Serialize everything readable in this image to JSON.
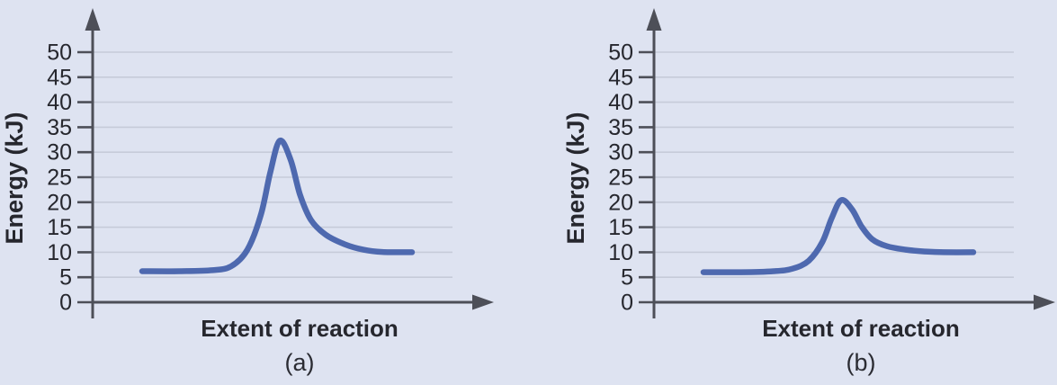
{
  "colors": {
    "background": "#dee3f1",
    "curve": "#4e69af",
    "gridline": "#c6cbd9",
    "axis": "#4d4f58",
    "text": "#26272e"
  },
  "chart_data": [
    {
      "type": "line",
      "caption": "(a)",
      "xlabel": "Extent of reaction",
      "ylabel": "Energy (kJ)",
      "ylim": [
        0,
        50
      ],
      "yticks": [
        0,
        5,
        10,
        15,
        20,
        25,
        30,
        35,
        40,
        45,
        50
      ],
      "grid": "horizontal",
      "legend": "none",
      "reactant_energy_kJ": 6,
      "peak_energy_kJ": 32,
      "product_energy_kJ": 10,
      "curve_points": [
        [
          0.0,
          6.2
        ],
        [
          0.14,
          6.2
        ],
        [
          0.26,
          6.4
        ],
        [
          0.33,
          7.2
        ],
        [
          0.39,
          10.5
        ],
        [
          0.44,
          17.5
        ],
        [
          0.475,
          26.0
        ],
        [
          0.51,
          32.3
        ],
        [
          0.55,
          28.5
        ],
        [
          0.585,
          21.5
        ],
        [
          0.625,
          16.5
        ],
        [
          0.68,
          13.5
        ],
        [
          0.75,
          11.6
        ],
        [
          0.82,
          10.5
        ],
        [
          0.89,
          10.05
        ],
        [
          1.0,
          10.0
        ]
      ]
    },
    {
      "type": "line",
      "caption": "(b)",
      "xlabel": "Extent of reaction",
      "ylabel": "Energy (kJ)",
      "ylim": [
        0,
        50
      ],
      "yticks": [
        0,
        5,
        10,
        15,
        20,
        25,
        30,
        35,
        40,
        45,
        50
      ],
      "grid": "horizontal",
      "legend": "none",
      "reactant_energy_kJ": 6,
      "peak_energy_kJ": 20,
      "product_energy_kJ": 10,
      "curve_points": [
        [
          0.0,
          6.0
        ],
        [
          0.14,
          6.0
        ],
        [
          0.26,
          6.2
        ],
        [
          0.33,
          6.7
        ],
        [
          0.39,
          8.3
        ],
        [
          0.44,
          12.0
        ],
        [
          0.475,
          16.8
        ],
        [
          0.51,
          20.4
        ],
        [
          0.55,
          18.6
        ],
        [
          0.585,
          15.2
        ],
        [
          0.625,
          12.6
        ],
        [
          0.68,
          11.2
        ],
        [
          0.75,
          10.5
        ],
        [
          0.82,
          10.15
        ],
        [
          0.89,
          10.0
        ],
        [
          1.0,
          10.0
        ]
      ]
    }
  ]
}
